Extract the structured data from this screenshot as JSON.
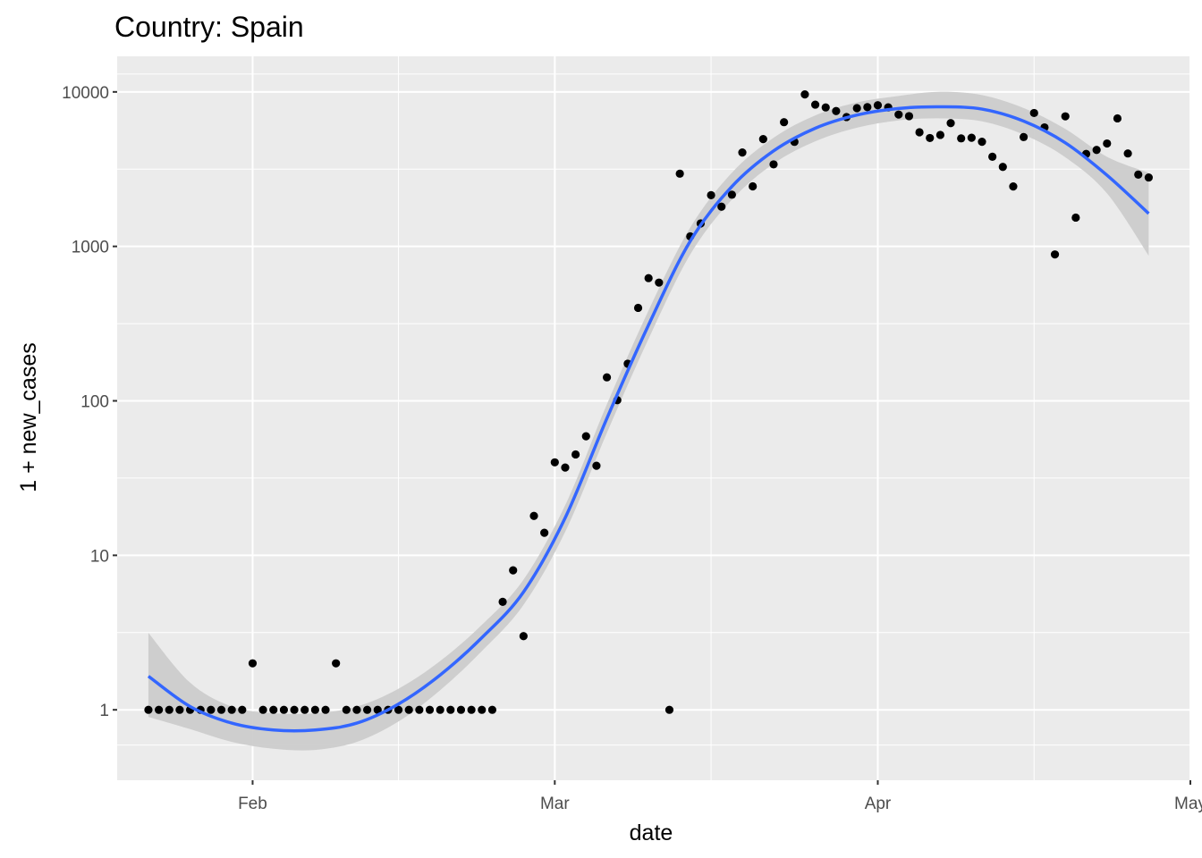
{
  "chart_data": {
    "type": "scatter",
    "title": "Country: Spain",
    "xlabel": "date",
    "ylabel": "1 + new_cases",
    "y_scale": "log10",
    "ylim": [
      0.35,
      17000
    ],
    "xlim": [
      "2020-01-19",
      "2020-05-01"
    ],
    "y_ticks": [
      1,
      10,
      100,
      1000,
      10000
    ],
    "y_tick_labels": [
      "1",
      "10",
      "100",
      "1000",
      "10000"
    ],
    "x_ticks": [
      "2020-02-01",
      "2020-03-01",
      "2020-04-01",
      "2020-05-01"
    ],
    "x_tick_labels": [
      "Feb",
      "Mar",
      "Apr",
      "May"
    ],
    "x_minor_ticks": [
      "2020-02-15",
      "2020-03-16",
      "2020-04-16"
    ],
    "grid": true,
    "background": "#ebebeb",
    "point_color": "#000000",
    "smooth_color": "#3366ff",
    "ribbon_color": "#cccccc",
    "points": [
      [
        "2020-01-22",
        1
      ],
      [
        "2020-01-23",
        1
      ],
      [
        "2020-01-24",
        1
      ],
      [
        "2020-01-25",
        1
      ],
      [
        "2020-01-26",
        1
      ],
      [
        "2020-01-27",
        1
      ],
      [
        "2020-01-28",
        1
      ],
      [
        "2020-01-29",
        1
      ],
      [
        "2020-01-30",
        1
      ],
      [
        "2020-01-31",
        1
      ],
      [
        "2020-02-01",
        2
      ],
      [
        "2020-02-02",
        1
      ],
      [
        "2020-02-03",
        1
      ],
      [
        "2020-02-04",
        1
      ],
      [
        "2020-02-05",
        1
      ],
      [
        "2020-02-06",
        1
      ],
      [
        "2020-02-07",
        1
      ],
      [
        "2020-02-08",
        1
      ],
      [
        "2020-02-09",
        2
      ],
      [
        "2020-02-10",
        1
      ],
      [
        "2020-02-11",
        1
      ],
      [
        "2020-02-12",
        1
      ],
      [
        "2020-02-13",
        1
      ],
      [
        "2020-02-14",
        1
      ],
      [
        "2020-02-15",
        1
      ],
      [
        "2020-02-16",
        1
      ],
      [
        "2020-02-17",
        1
      ],
      [
        "2020-02-18",
        1
      ],
      [
        "2020-02-19",
        1
      ],
      [
        "2020-02-20",
        1
      ],
      [
        "2020-02-21",
        1
      ],
      [
        "2020-02-22",
        1
      ],
      [
        "2020-02-23",
        1
      ],
      [
        "2020-02-24",
        1
      ],
      [
        "2020-02-25",
        5
      ],
      [
        "2020-02-26",
        8
      ],
      [
        "2020-02-27",
        3
      ],
      [
        "2020-02-28",
        18
      ],
      [
        "2020-02-29",
        14
      ],
      [
        "2020-03-01",
        40
      ],
      [
        "2020-03-02",
        37
      ],
      [
        "2020-03-03",
        45
      ],
      [
        "2020-03-04",
        59
      ],
      [
        "2020-03-05",
        38
      ],
      [
        "2020-03-06",
        142
      ],
      [
        "2020-03-07",
        101
      ],
      [
        "2020-03-08",
        174
      ],
      [
        "2020-03-09",
        400
      ],
      [
        "2020-03-10",
        623
      ],
      [
        "2020-03-11",
        583
      ],
      [
        "2020-03-12",
        1
      ],
      [
        "2020-03-13",
        2956
      ],
      [
        "2020-03-14",
        1160
      ],
      [
        "2020-03-15",
        1408
      ],
      [
        "2020-03-16",
        2145
      ],
      [
        "2020-03-17",
        1807
      ],
      [
        "2020-03-18",
        2161
      ],
      [
        "2020-03-19",
        4054
      ],
      [
        "2020-03-20",
        2448
      ],
      [
        "2020-03-21",
        4947
      ],
      [
        "2020-03-22",
        3395
      ],
      [
        "2020-03-23",
        6369
      ],
      [
        "2020-03-24",
        4750
      ],
      [
        "2020-03-25",
        9631
      ],
      [
        "2020-03-26",
        8272
      ],
      [
        "2020-03-27",
        7934
      ],
      [
        "2020-03-28",
        7517
      ],
      [
        "2020-03-29",
        6876
      ],
      [
        "2020-03-30",
        7847
      ],
      [
        "2020-03-31",
        7968
      ],
      [
        "2020-04-01",
        8196
      ],
      [
        "2020-04-02",
        7946
      ],
      [
        "2020-04-03",
        7135
      ],
      [
        "2020-04-04",
        6969
      ],
      [
        "2020-04-05",
        5478
      ],
      [
        "2020-04-06",
        5029
      ],
      [
        "2020-04-07",
        5267
      ],
      [
        "2020-04-08",
        6278
      ],
      [
        "2020-04-09",
        5002
      ],
      [
        "2020-04-10",
        5051
      ],
      [
        "2020-04-11",
        4754
      ],
      [
        "2020-04-12",
        3804
      ],
      [
        "2020-04-13",
        3268
      ],
      [
        "2020-04-14",
        2442
      ],
      [
        "2020-04-15",
        5103
      ],
      [
        "2020-04-16",
        7304
      ],
      [
        "2020-04-17",
        5891
      ],
      [
        "2020-04-18",
        887
      ],
      [
        "2020-04-19",
        6948
      ],
      [
        "2020-04-20",
        1536
      ],
      [
        "2020-04-21",
        3968
      ],
      [
        "2020-04-22",
        4211
      ],
      [
        "2020-04-23",
        4635
      ],
      [
        "2020-04-24",
        6740
      ],
      [
        "2020-04-25",
        3995
      ],
      [
        "2020-04-26",
        2915
      ],
      [
        "2020-04-27",
        2793
      ]
    ],
    "smooth": {
      "name": "loess fit",
      "x": [
        "2020-01-22",
        "2020-01-26",
        "2020-01-30",
        "2020-02-03",
        "2020-02-07",
        "2020-02-11",
        "2020-02-15",
        "2020-02-19",
        "2020-02-23",
        "2020-02-27",
        "2020-03-02",
        "2020-03-06",
        "2020-03-10",
        "2020-03-14",
        "2020-03-18",
        "2020-03-22",
        "2020-03-26",
        "2020-03-30",
        "2020-04-03",
        "2020-04-07",
        "2020-04-11",
        "2020-04-15",
        "2020-04-19",
        "2020-04-23",
        "2020-04-27"
      ],
      "fit": [
        1.65,
        1.05,
        0.82,
        0.74,
        0.74,
        0.82,
        1.09,
        1.68,
        2.93,
        5.79,
        17.5,
        77,
        310,
        1081,
        2440,
        4151,
        5818,
        7084,
        7815,
        8007,
        7741,
        6469,
        4682,
        2889,
        1632
      ],
      "lower": [
        0.9,
        0.75,
        0.62,
        0.56,
        0.55,
        0.62,
        0.84,
        1.34,
        2.4,
        4.78,
        14.2,
        62,
        252,
        886,
        2007,
        3432,
        4789,
        5870,
        6540,
        6740,
        6449,
        5286,
        3773,
        2205,
        870
      ],
      "upper": [
        3.15,
        1.5,
        1.05,
        0.95,
        0.95,
        1.05,
        1.37,
        2.07,
        3.55,
        6.97,
        21.1,
        95,
        385,
        1323,
        3000,
        5049,
        7050,
        8550,
        9420,
        10030,
        9540,
        7860,
        5760,
        3800,
        3000
      ]
    }
  }
}
